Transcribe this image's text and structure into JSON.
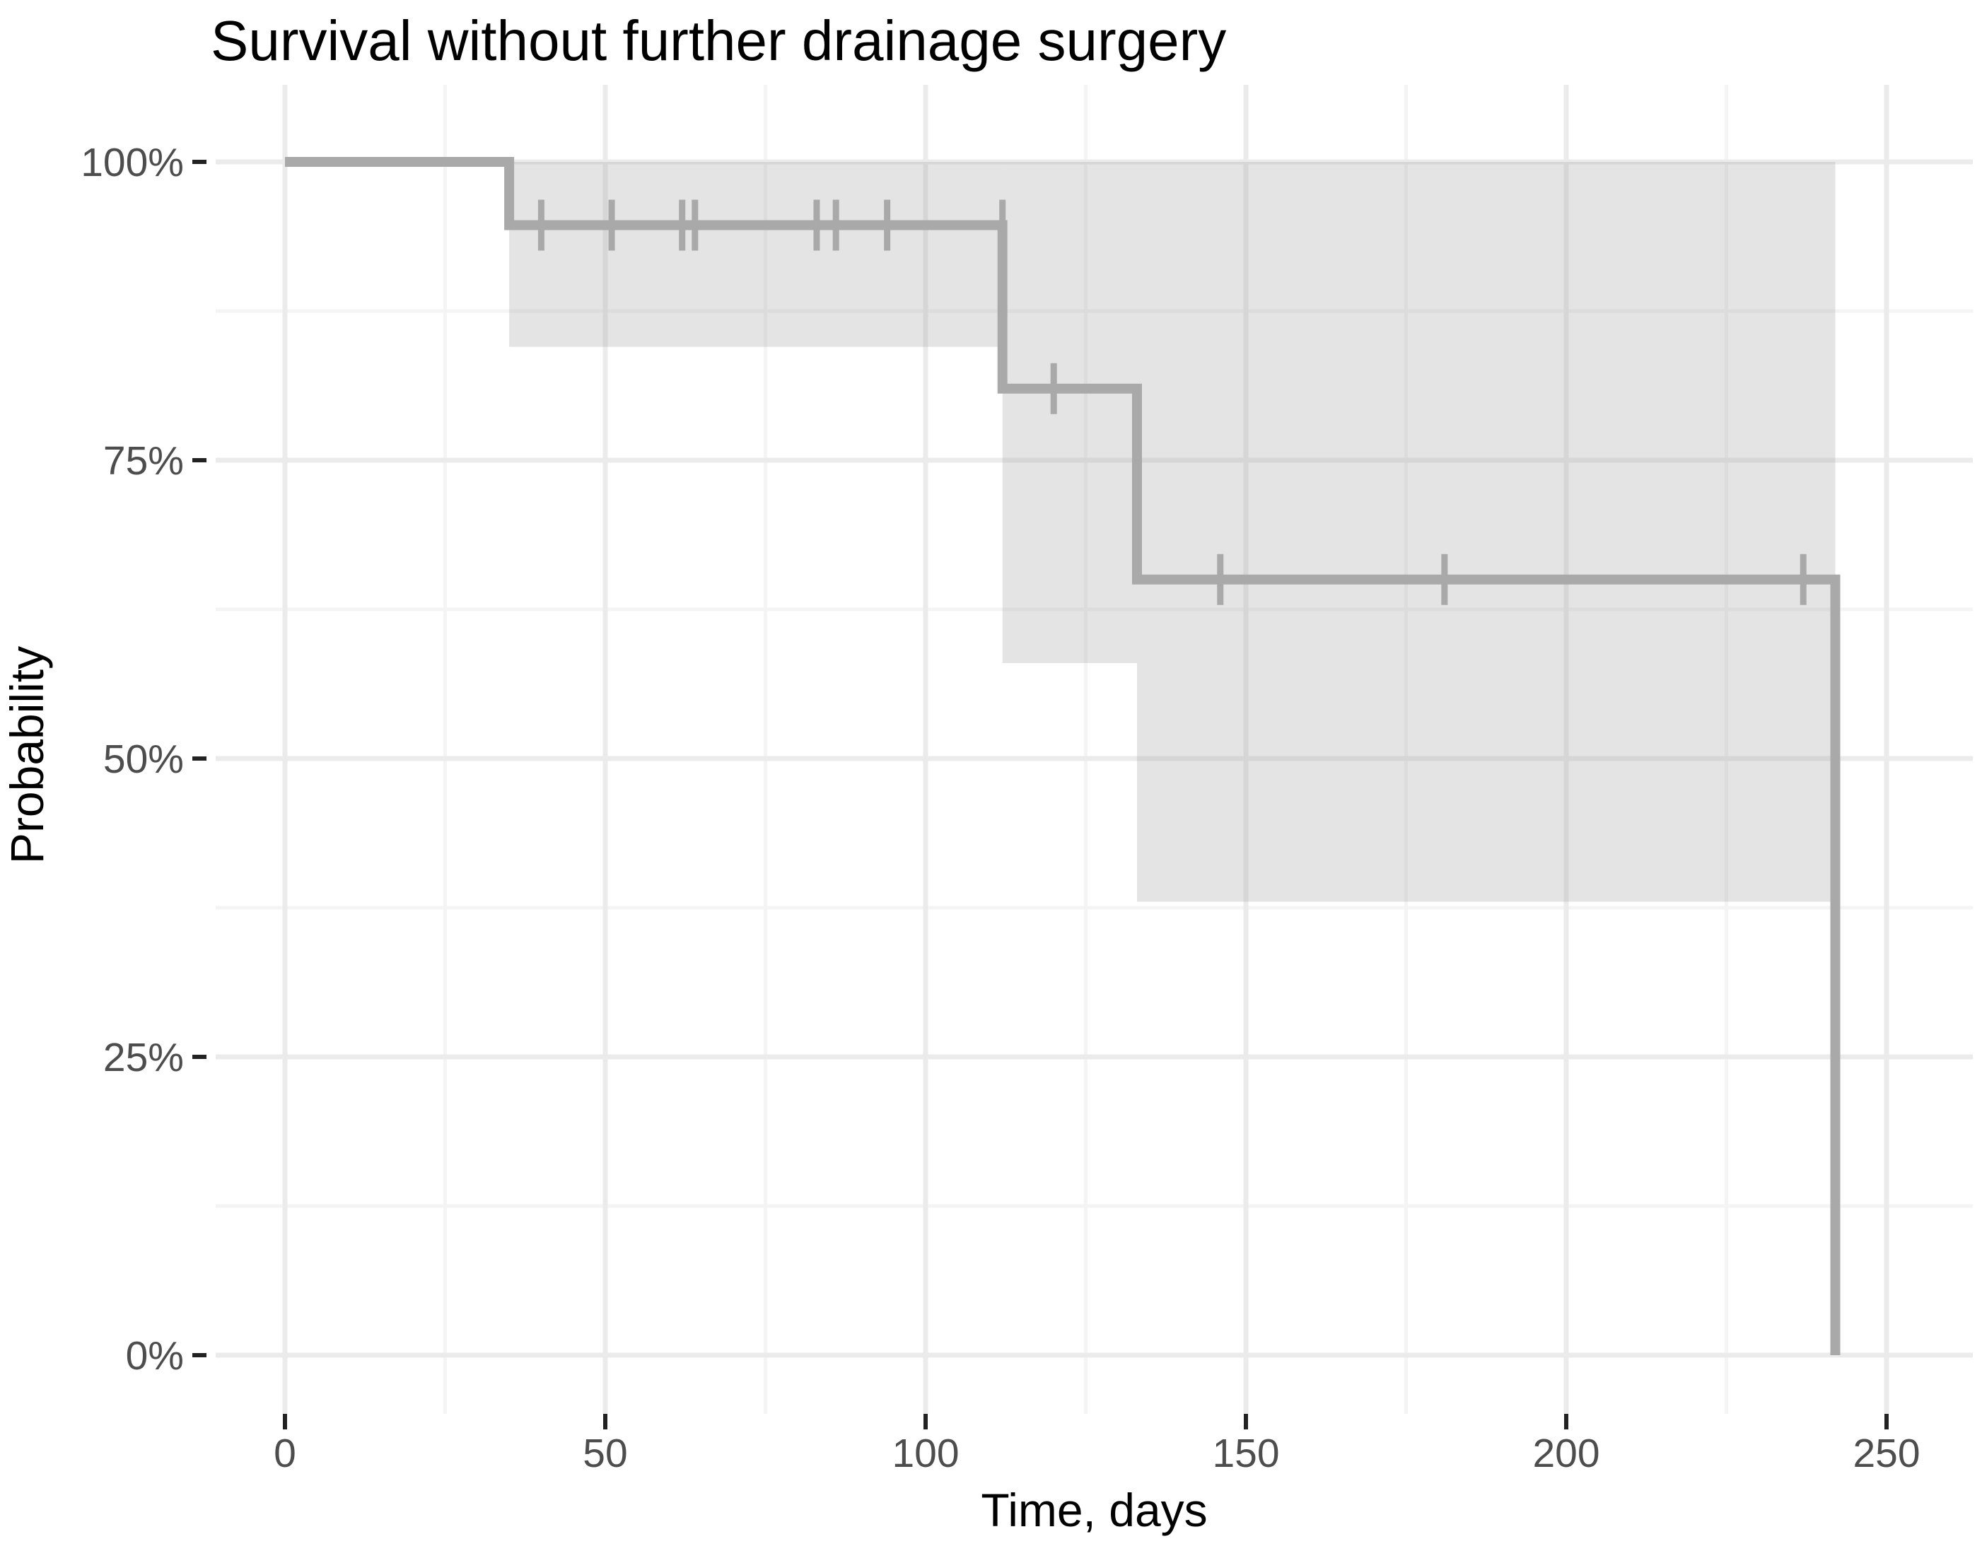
{
  "chart_data": {
    "type": "line",
    "subtype": "kaplan-meier-step-curve",
    "title": "Survival without further drainage surgery",
    "xlabel": "Time, days",
    "ylabel": "Probability",
    "x_ticks": [
      0,
      50,
      100,
      150,
      200,
      250
    ],
    "x_minor_ticks": [
      25,
      75,
      125,
      175,
      225
    ],
    "y_ticks": [
      {
        "value": 0,
        "label": "0%"
      },
      {
        "value": 25,
        "label": "25%"
      },
      {
        "value": 50,
        "label": "50%"
      },
      {
        "value": 75,
        "label": "75%"
      },
      {
        "value": 100,
        "label": "100%"
      }
    ],
    "y_minor_ticks": [
      12.5,
      37.5,
      62.5,
      87.5
    ],
    "xlim": [
      -10,
      263
    ],
    "ylim": [
      -5,
      105
    ],
    "grid": "major+minor",
    "legend": "none",
    "series": [
      {
        "name": "survival-probability",
        "steps_day_pct": [
          [
            0,
            100
          ],
          [
            35,
            100
          ],
          [
            35,
            94.7
          ],
          [
            112,
            94.7
          ],
          [
            112,
            81
          ],
          [
            133,
            81
          ],
          [
            133,
            65
          ],
          [
            242,
            65
          ],
          [
            242,
            0
          ]
        ],
        "censor_marks_day_pct": [
          [
            40,
            94.7
          ],
          [
            51,
            94.7
          ],
          [
            62,
            94.7
          ],
          [
            64,
            94.7
          ],
          [
            83,
            94.7
          ],
          [
            86,
            94.7
          ],
          [
            94,
            94.7
          ],
          [
            112,
            94.7
          ],
          [
            120,
            81
          ],
          [
            146,
            65
          ],
          [
            181,
            65
          ],
          [
            237,
            65
          ]
        ]
      }
    ],
    "confidence_band_segments": [
      {
        "x_start": 35,
        "x_end": 112,
        "lower_pct": 84.5,
        "upper_pct": 100
      },
      {
        "x_start": 112,
        "x_end": 133,
        "lower_pct": 58,
        "upper_pct": 100
      },
      {
        "x_start": 133,
        "x_end": 242,
        "lower_pct": 38,
        "upper_pct": 100
      }
    ],
    "colors": {
      "curve": "#a9a9a9",
      "censor": "#a9a9a9",
      "band_fill": "#a6a6a6",
      "band_opacity": "0.30",
      "grid_major": "#ebebeb",
      "grid_minor": "#f4f4f4",
      "axis_tick": "#222222",
      "tick_label": "#4d4d4d",
      "text": "#000000",
      "panel_background": "#ffffff"
    }
  }
}
